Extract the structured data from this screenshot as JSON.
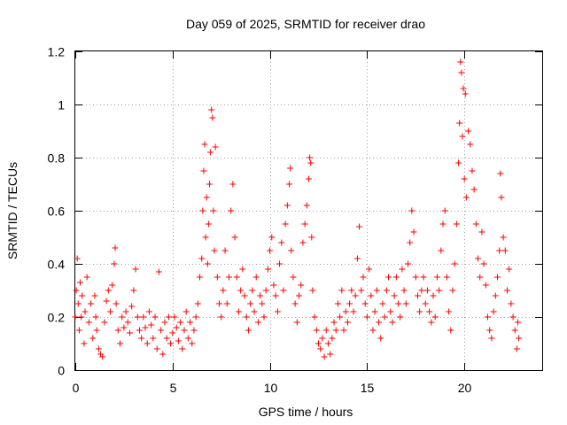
{
  "chart_data": {
    "type": "scatter",
    "title": "Day 059 of 2025, SRMTID for receiver drao",
    "xlabel": "GPS time / hours",
    "ylabel": "SRMTID / TECUs",
    "xlim": [
      0,
      24
    ],
    "ylim": [
      0,
      1.2
    ],
    "xticks": [
      0,
      5,
      10,
      15,
      20
    ],
    "yticks": [
      0,
      0.2,
      0.4,
      0.6,
      0.8,
      1,
      1.2
    ],
    "xtick_labels": [
      "0",
      "5",
      "10",
      "15",
      "20"
    ],
    "ytick_labels": [
      "0",
      "0.2",
      "0.4",
      "0.6",
      "0.8",
      "1",
      "1.2"
    ],
    "grid": true,
    "marker": "+",
    "color": "#ff0000",
    "series": [
      {
        "name": "SRMTID",
        "points": [
          [
            0.0,
            0.2
          ],
          [
            0.05,
            0.3
          ],
          [
            0.1,
            0.42
          ],
          [
            0.15,
            0.25
          ],
          [
            0.2,
            0.15
          ],
          [
            0.25,
            0.33
          ],
          [
            0.3,
            0.2
          ],
          [
            0.35,
            0.28
          ],
          [
            0.45,
            0.1
          ],
          [
            0.5,
            0.22
          ],
          [
            0.6,
            0.35
          ],
          [
            0.7,
            0.18
          ],
          [
            0.8,
            0.25
          ],
          [
            0.9,
            0.12
          ],
          [
            1.0,
            0.28
          ],
          [
            1.05,
            0.2
          ],
          [
            1.1,
            0.15
          ],
          [
            1.2,
            0.08
          ],
          [
            1.3,
            0.06
          ],
          [
            1.4,
            0.05
          ],
          [
            1.5,
            0.18
          ],
          [
            1.6,
            0.26
          ],
          [
            1.7,
            0.3
          ],
          [
            1.8,
            0.22
          ],
          [
            1.9,
            0.32
          ],
          [
            2.0,
            0.4
          ],
          [
            2.05,
            0.46
          ],
          [
            2.1,
            0.25
          ],
          [
            2.2,
            0.15
          ],
          [
            2.3,
            0.1
          ],
          [
            2.4,
            0.2
          ],
          [
            2.5,
            0.16
          ],
          [
            2.6,
            0.22
          ],
          [
            2.7,
            0.18
          ],
          [
            2.8,
            0.14
          ],
          [
            2.9,
            0.24
          ],
          [
            3.0,
            0.3
          ],
          [
            3.1,
            0.38
          ],
          [
            3.2,
            0.2
          ],
          [
            3.3,
            0.15
          ],
          [
            3.4,
            0.12
          ],
          [
            3.5,
            0.2
          ],
          [
            3.6,
            0.16
          ],
          [
            3.7,
            0.1
          ],
          [
            3.8,
            0.22
          ],
          [
            3.9,
            0.17
          ],
          [
            4.0,
            0.12
          ],
          [
            4.1,
            0.2
          ],
          [
            4.2,
            0.08
          ],
          [
            4.3,
            0.37
          ],
          [
            4.4,
            0.15
          ],
          [
            4.5,
            0.06
          ],
          [
            4.6,
            0.18
          ],
          [
            4.7,
            0.12
          ],
          [
            4.8,
            0.2
          ],
          [
            4.9,
            0.1
          ],
          [
            5.0,
            0.14
          ],
          [
            5.1,
            0.2
          ],
          [
            5.2,
            0.16
          ],
          [
            5.3,
            0.11
          ],
          [
            5.4,
            0.18
          ],
          [
            5.5,
            0.08
          ],
          [
            5.6,
            0.15
          ],
          [
            5.7,
            0.22
          ],
          [
            5.8,
            0.12
          ],
          [
            5.9,
            0.18
          ],
          [
            6.0,
            0.1
          ],
          [
            6.1,
            0.15
          ],
          [
            6.2,
            0.2
          ],
          [
            6.3,
            0.25
          ],
          [
            6.4,
            0.35
          ],
          [
            6.5,
            0.42
          ],
          [
            6.55,
            0.6
          ],
          [
            6.6,
            0.75
          ],
          [
            6.65,
            0.85
          ],
          [
            6.7,
            0.5
          ],
          [
            6.75,
            0.65
          ],
          [
            6.8,
            0.4
          ],
          [
            6.85,
            0.55
          ],
          [
            6.9,
            0.7
          ],
          [
            6.95,
            0.82
          ],
          [
            7.0,
            0.98
          ],
          [
            7.05,
            0.95
          ],
          [
            7.1,
            0.6
          ],
          [
            7.15,
            0.45
          ],
          [
            7.2,
            0.84
          ],
          [
            7.3,
            0.35
          ],
          [
            7.4,
            0.25
          ],
          [
            7.5,
            0.2
          ],
          [
            7.6,
            0.3
          ],
          [
            7.7,
            0.45
          ],
          [
            7.8,
            0.25
          ],
          [
            7.9,
            0.35
          ],
          [
            8.0,
            0.6
          ],
          [
            8.1,
            0.7
          ],
          [
            8.2,
            0.5
          ],
          [
            8.3,
            0.35
          ],
          [
            8.4,
            0.22
          ],
          [
            8.5,
            0.3
          ],
          [
            8.6,
            0.38
          ],
          [
            8.7,
            0.28
          ],
          [
            8.8,
            0.2
          ],
          [
            8.9,
            0.15
          ],
          [
            9.0,
            0.25
          ],
          [
            9.1,
            0.3
          ],
          [
            9.2,
            0.22
          ],
          [
            9.3,
            0.35
          ],
          [
            9.4,
            0.18
          ],
          [
            9.5,
            0.28
          ],
          [
            9.6,
            0.25
          ],
          [
            9.7,
            0.2
          ],
          [
            9.8,
            0.3
          ],
          [
            9.9,
            0.38
          ],
          [
            10.0,
            0.45
          ],
          [
            10.1,
            0.5
          ],
          [
            10.2,
            0.32
          ],
          [
            10.3,
            0.28
          ],
          [
            10.4,
            0.22
          ],
          [
            10.5,
            0.4
          ],
          [
            10.6,
            0.48
          ],
          [
            10.7,
            0.3
          ],
          [
            10.8,
            0.55
          ],
          [
            10.9,
            0.62
          ],
          [
            11.0,
            0.7
          ],
          [
            11.05,
            0.76
          ],
          [
            11.1,
            0.45
          ],
          [
            11.2,
            0.35
          ],
          [
            11.3,
            0.25
          ],
          [
            11.4,
            0.18
          ],
          [
            11.5,
            0.28
          ],
          [
            11.6,
            0.32
          ],
          [
            11.7,
            0.48
          ],
          [
            11.8,
            0.55
          ],
          [
            11.9,
            0.62
          ],
          [
            12.0,
            0.72
          ],
          [
            12.05,
            0.8
          ],
          [
            12.1,
            0.78
          ],
          [
            12.15,
            0.5
          ],
          [
            12.2,
            0.3
          ],
          [
            12.3,
            0.2
          ],
          [
            12.4,
            0.15
          ],
          [
            12.5,
            0.1
          ],
          [
            12.6,
            0.08
          ],
          [
            12.7,
            0.12
          ],
          [
            12.8,
            0.05
          ],
          [
            12.9,
            0.15
          ],
          [
            13.0,
            0.1
          ],
          [
            13.1,
            0.06
          ],
          [
            13.2,
            0.12
          ],
          [
            13.3,
            0.18
          ],
          [
            13.4,
            0.15
          ],
          [
            13.5,
            0.25
          ],
          [
            13.6,
            0.2
          ],
          [
            13.7,
            0.3
          ],
          [
            13.8,
            0.15
          ],
          [
            13.9,
            0.22
          ],
          [
            14.0,
            0.18
          ],
          [
            14.1,
            0.25
          ],
          [
            14.2,
            0.3
          ],
          [
            14.3,
            0.22
          ],
          [
            14.4,
            0.28
          ],
          [
            14.5,
            0.42
          ],
          [
            14.6,
            0.54
          ],
          [
            14.7,
            0.3
          ],
          [
            14.8,
            0.35
          ],
          [
            14.9,
            0.25
          ],
          [
            15.0,
            0.2
          ],
          [
            15.1,
            0.38
          ],
          [
            15.2,
            0.28
          ],
          [
            15.3,
            0.15
          ],
          [
            15.4,
            0.22
          ],
          [
            15.5,
            0.3
          ],
          [
            15.6,
            0.18
          ],
          [
            15.7,
            0.12
          ],
          [
            15.8,
            0.25
          ],
          [
            15.9,
            0.2
          ],
          [
            16.0,
            0.3
          ],
          [
            16.1,
            0.35
          ],
          [
            16.2,
            0.22
          ],
          [
            16.3,
            0.18
          ],
          [
            16.4,
            0.28
          ],
          [
            16.5,
            0.35
          ],
          [
            16.6,
            0.25
          ],
          [
            16.7,
            0.2
          ],
          [
            16.8,
            0.38
          ],
          [
            16.9,
            0.3
          ],
          [
            17.0,
            0.25
          ],
          [
            17.1,
            0.4
          ],
          [
            17.2,
            0.48
          ],
          [
            17.3,
            0.6
          ],
          [
            17.4,
            0.52
          ],
          [
            17.5,
            0.35
          ],
          [
            17.6,
            0.28
          ],
          [
            17.7,
            0.22
          ],
          [
            17.8,
            0.3
          ],
          [
            17.9,
            0.35
          ],
          [
            18.0,
            0.25
          ],
          [
            18.1,
            0.3
          ],
          [
            18.2,
            0.22
          ],
          [
            18.3,
            0.18
          ],
          [
            18.4,
            0.28
          ],
          [
            18.5,
            0.2
          ],
          [
            18.6,
            0.35
          ],
          [
            18.7,
            0.3
          ],
          [
            18.8,
            0.45
          ],
          [
            18.9,
            0.55
          ],
          [
            19.0,
            0.6
          ],
          [
            19.1,
            0.35
          ],
          [
            19.2,
            0.22
          ],
          [
            19.3,
            0.15
          ],
          [
            19.4,
            0.3
          ],
          [
            19.5,
            0.4
          ],
          [
            19.6,
            0.55
          ],
          [
            19.7,
            0.78
          ],
          [
            19.75,
            0.93
          ],
          [
            19.8,
            1.16
          ],
          [
            19.85,
            1.12
          ],
          [
            19.9,
            0.88
          ],
          [
            19.95,
            1.06
          ],
          [
            20.0,
            0.72
          ],
          [
            20.05,
            1.04
          ],
          [
            20.1,
            0.65
          ],
          [
            20.2,
            0.9
          ],
          [
            20.3,
            0.85
          ],
          [
            20.4,
            0.75
          ],
          [
            20.5,
            0.68
          ],
          [
            20.6,
            0.55
          ],
          [
            20.7,
            0.42
          ],
          [
            20.8,
            0.35
          ],
          [
            20.9,
            0.52
          ],
          [
            21.0,
            0.4
          ],
          [
            21.1,
            0.32
          ],
          [
            21.2,
            0.2
          ],
          [
            21.3,
            0.15
          ],
          [
            21.4,
            0.12
          ],
          [
            21.5,
            0.22
          ],
          [
            21.6,
            0.28
          ],
          [
            21.7,
            0.35
          ],
          [
            21.8,
            0.45
          ],
          [
            21.85,
            0.74
          ],
          [
            21.9,
            0.65
          ],
          [
            22.0,
            0.5
          ],
          [
            22.1,
            0.45
          ],
          [
            22.2,
            0.3
          ],
          [
            22.3,
            0.38
          ],
          [
            22.4,
            0.25
          ],
          [
            22.5,
            0.2
          ],
          [
            22.6,
            0.15
          ],
          [
            22.7,
            0.08
          ],
          [
            22.75,
            0.18
          ],
          [
            22.8,
            0.12
          ]
        ]
      }
    ]
  }
}
